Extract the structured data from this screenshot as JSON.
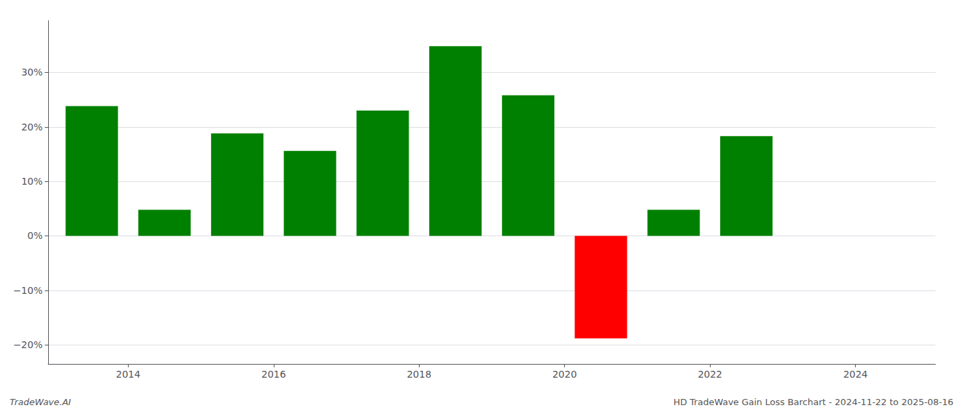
{
  "chart_data": {
    "type": "bar",
    "x": [
      2013.5,
      2014.5,
      2015.5,
      2016.5,
      2017.5,
      2018.5,
      2019.5,
      2020.5,
      2021.5,
      2022.5
    ],
    "values": [
      0.238,
      0.048,
      0.188,
      0.156,
      0.23,
      0.348,
      0.258,
      -0.188,
      0.048,
      0.183
    ],
    "colors": [
      "#008000",
      "#008000",
      "#008000",
      "#008000",
      "#008000",
      "#008000",
      "#008000",
      "#ff0000",
      "#008000",
      "#008000"
    ],
    "xlim": [
      2012.9,
      2025.1
    ],
    "xticks": [
      2014,
      2016,
      2018,
      2020,
      2022,
      2024
    ],
    "ylim": [
      -0.235,
      0.395
    ],
    "yticks": [
      {
        "value": -0.2,
        "label": "−20%"
      },
      {
        "value": -0.1,
        "label": "−10%"
      },
      {
        "value": 0.0,
        "label": "0%"
      },
      {
        "value": 0.1,
        "label": "10%"
      },
      {
        "value": 0.2,
        "label": "20%"
      },
      {
        "value": 0.3,
        "label": "30%"
      }
    ],
    "grid": true,
    "annotations": [
      "TradeWave.AI",
      "HD TradeWave Gain Loss Barchart - 2024-11-22 to 2025-08-16"
    ]
  }
}
